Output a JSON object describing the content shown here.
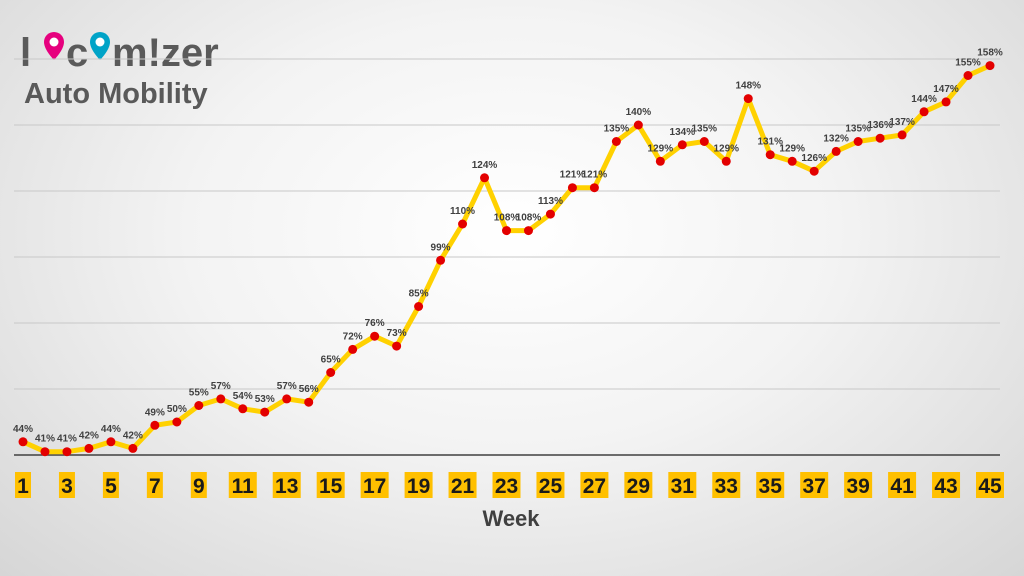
{
  "logo": {
    "text": "locomizer",
    "brand_color": "#595959",
    "pin_pink": "#e6007e",
    "pin_teal": "#00a3c7"
  },
  "title": "Auto Mobility",
  "colors": {
    "line": "#ffd100",
    "marker": "#e30000",
    "tick_bg": "#ffc000",
    "grid": "#c8c8c8"
  },
  "chart_data": {
    "type": "line",
    "title": "Auto Mobility",
    "xlabel": "Week",
    "ylabel": "",
    "x": [
      1,
      2,
      3,
      4,
      5,
      6,
      7,
      8,
      9,
      10,
      11,
      12,
      13,
      14,
      15,
      16,
      17,
      18,
      19,
      20,
      21,
      22,
      23,
      24,
      25,
      26,
      27,
      28,
      29,
      30,
      31,
      32,
      33,
      34,
      35,
      36,
      37,
      38,
      39,
      40,
      41,
      42,
      43,
      44,
      45
    ],
    "tick_labels": [
      "1",
      "3",
      "5",
      "7",
      "9",
      "11",
      "13",
      "15",
      "17",
      "19",
      "21",
      "23",
      "25",
      "27",
      "29",
      "31",
      "33",
      "35",
      "37",
      "39",
      "41",
      "43",
      "45"
    ],
    "series": [
      {
        "values": [
          44,
          41,
          41,
          42,
          44,
          42,
          49,
          50,
          55,
          57,
          54,
          53,
          57,
          56,
          65,
          72,
          76,
          73,
          85,
          99,
          110,
          124,
          108,
          108,
          113,
          121,
          121,
          135,
          140,
          129,
          134,
          135,
          129,
          148,
          131,
          129,
          126,
          132,
          135,
          136,
          137,
          144,
          147,
          155,
          158
        ],
        "labels": [
          "44%",
          "41%",
          "41%",
          "42%",
          "44%",
          "42%",
          "49%",
          "50%",
          "55%",
          "57%",
          "54%",
          "53%",
          "57%",
          "56%",
          "65%",
          "72%",
          "76%",
          "73%",
          "85%",
          "99%",
          "110%",
          "124%",
          "108%",
          "108%",
          "113%",
          "121%",
          "121%",
          "135%",
          "140%",
          "129%",
          "134%",
          "135%",
          "129%",
          "148%",
          "131%",
          "129%",
          "126%",
          "132%",
          "135%",
          "136%",
          "137%",
          "144%",
          "147%",
          "155%",
          "158%"
        ]
      }
    ],
    "ylim": [
      40,
      160
    ],
    "grid": true,
    "legend": "none"
  }
}
